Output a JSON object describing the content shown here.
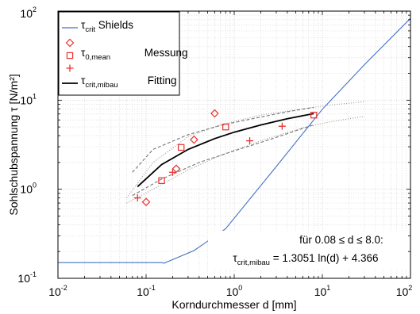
{
  "chart_data": {
    "type": "scatter",
    "x_axis": {
      "label": "Korndurchmesser d [mm]",
      "scale": "log",
      "range": [
        0.01,
        100
      ],
      "ticks": [
        {
          "base": "10",
          "exp": "-2"
        },
        {
          "base": "10",
          "exp": "-1"
        },
        {
          "base": "10",
          "exp": "0"
        },
        {
          "base": "10",
          "exp": "1"
        },
        {
          "base": "10",
          "exp": "2"
        }
      ]
    },
    "y_axis": {
      "label": "Sohlschubspannung τ [N/m²]",
      "scale": "log",
      "range": [
        0.1,
        100
      ],
      "ticks": [
        {
          "base": "10",
          "exp": "-1"
        },
        {
          "base": "10",
          "exp": "0"
        },
        {
          "base": "10",
          "exp": "1"
        },
        {
          "base": "10",
          "exp": "2"
        }
      ]
    },
    "grid": true,
    "legend": {
      "placement": "top-left",
      "entries": [
        {
          "main": "τ",
          "sub": "crit",
          "after": " Shields",
          "mark": "line",
          "color": "#4472c4"
        },
        {
          "main": "",
          "sub": "",
          "after": "",
          "mark": "diamond",
          "color": "#e8322d"
        },
        {
          "main": "τ",
          "sub": "0,mean",
          "after": " Messung",
          "mark": "square",
          "color": "#e8322d"
        },
        {
          "main": "",
          "sub": "",
          "after": "",
          "mark": "plus",
          "color": "#e8322d"
        },
        {
          "main": "τ",
          "sub": "crit,mibau",
          "after": " Fitting",
          "mark": "line",
          "color": "#000000"
        }
      ]
    },
    "annotation": {
      "line1": "für 0.08 ≤ d ≤ 8.0:",
      "line2_main": "τ",
      "line2_sub": "crit,mibau",
      "line2_rest": " = 1.3051 ln(d) + 4.366"
    },
    "series": [
      {
        "name": "τcrit Shields",
        "kind": "line",
        "color": "#4472c4",
        "x": [
          0.01,
          0.15,
          0.16,
          0.35,
          0.8,
          3.0,
          10.0,
          30.0,
          100.0
        ],
        "y": [
          0.15,
          0.15,
          0.148,
          0.205,
          0.36,
          1.8,
          7.9,
          25.0,
          83.0
        ]
      },
      {
        "kind": "diamond",
        "color": "#e8322d",
        "x": [
          0.1,
          0.22,
          0.35,
          0.6
        ],
        "y": [
          0.72,
          1.7,
          3.6,
          7.1
        ]
      },
      {
        "kind": "square",
        "color": "#e8322d",
        "x": [
          0.15,
          0.25,
          0.8,
          8.0
        ],
        "y": [
          1.25,
          2.95,
          5.0,
          6.8
        ]
      },
      {
        "kind": "plus",
        "color": "#e8322d",
        "x": [
          0.08,
          0.2,
          1.5,
          3.5
        ],
        "y": [
          0.8,
          1.55,
          3.5,
          5.1
        ]
      },
      {
        "name": "τcrit,mibau Fitting",
        "kind": "line",
        "color": "#000000",
        "width": 1.8,
        "x": [
          0.08,
          0.15,
          0.3,
          0.6,
          1.0,
          2.0,
          4.0,
          8.0
        ],
        "y": [
          1.07,
          1.89,
          2.8,
          3.7,
          4.37,
          5.27,
          6.18,
          7.08
        ]
      },
      {
        "kind": "dashed",
        "color": "#777777",
        "x": [
          0.07,
          0.12,
          0.3,
          0.7,
          1.5,
          4.0,
          8.0
        ],
        "y": [
          1.55,
          2.8,
          4.1,
          5.2,
          6.1,
          7.4,
          8.3
        ]
      },
      {
        "kind": "dashed",
        "color": "#777777",
        "x": [
          0.07,
          0.15,
          0.4,
          1.0,
          2.5,
          8.0
        ],
        "y": [
          0.85,
          1.3,
          2.0,
          2.7,
          3.6,
          5.3
        ]
      },
      {
        "kind": "dotted",
        "color": "#999999",
        "x": [
          0.06,
          0.12,
          0.3,
          0.7,
          2.0,
          6.0,
          12.0,
          30.0
        ],
        "y": [
          0.8,
          2.0,
          3.9,
          5.3,
          6.8,
          8.0,
          8.8,
          9.6
        ]
      },
      {
        "kind": "dotted",
        "color": "#999999",
        "x": [
          0.06,
          0.12,
          0.3,
          0.7,
          2.0,
          6.0,
          12.0,
          30.0
        ],
        "y": [
          0.7,
          1.0,
          1.65,
          2.4,
          3.5,
          4.9,
          5.7,
          6.6
        ]
      }
    ]
  }
}
